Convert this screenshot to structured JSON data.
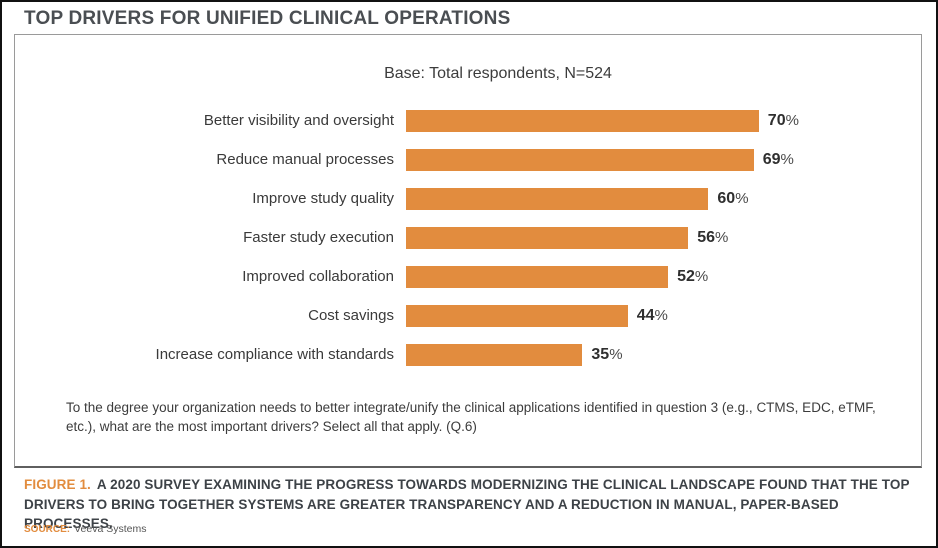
{
  "header": {
    "title": "TOP DRIVERS FOR UNIFIED CLINICAL OPERATIONS"
  },
  "chart_data": {
    "type": "bar",
    "orientation": "horizontal",
    "subtitle": "Base: Total respondents, N=524",
    "categories": [
      "Better visibility and oversight",
      "Reduce manual processes",
      "Improve study quality",
      "Faster study execution",
      "Improved collaboration",
      "Cost savings",
      "Increase compliance with standards"
    ],
    "values": [
      70,
      69,
      60,
      56,
      52,
      44,
      35
    ],
    "unit": "%",
    "xlim": [
      0,
      100
    ],
    "grid": false,
    "legend": "none",
    "bar_color": "#E28C3E",
    "footnote": "To the degree your organization needs to better integrate/unify the clinical applications identified in question 3 (e.g., CTMS, EDC, eTMF, etc.), what are the most important drivers? Select all that apply. (Q.6)"
  },
  "caption": {
    "figure_label": "FIGURE 1.",
    "text": "A 2020 SURVEY EXAMINING THE PROGRESS TOWARDS MODERNIZING THE CLINICAL LANDSCAPE FOUND THAT THE TOP DRIVERS TO BRING TOGETHER SYSTEMS ARE GREATER TRANSPARENCY AND A REDUCTION IN MANUAL, PAPER-BASED PROCESSES."
  },
  "source": {
    "label": "SOURCE:",
    "name": "Veeva Systems"
  },
  "colors": {
    "accent_orange": "#E28C3E",
    "title_gray": "#4a4e52",
    "text_gray": "#3c3c3c",
    "panel_border": "#9a9a9a"
  }
}
